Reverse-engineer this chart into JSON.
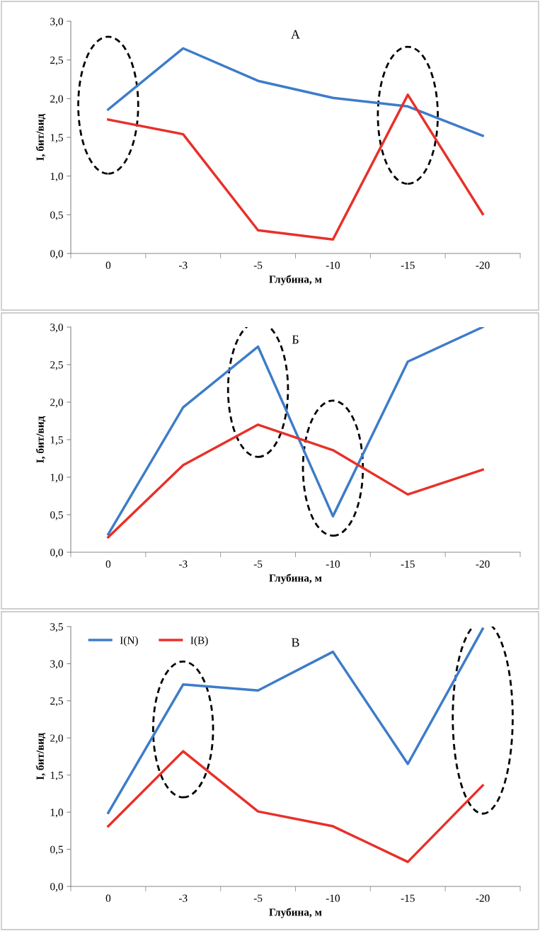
{
  "chart_data": [
    {
      "type": "line",
      "title": "А",
      "xlabel": "Глубина, м",
      "ylabel": "I, бит/вид",
      "categories": [
        "0",
        "-3",
        "-5",
        "-10",
        "-15",
        "-20"
      ],
      "ylim": [
        0,
        3
      ],
      "yticks": [
        {
          "value": 0,
          "label": "0,0"
        },
        {
          "value": 0.5,
          "label": "0,5"
        },
        {
          "value": 1,
          "label": "1,0"
        },
        {
          "value": 1.5,
          "label": "1,5"
        },
        {
          "value": 2,
          "label": "2,0"
        },
        {
          "value": 2.5,
          "label": "2,5"
        },
        {
          "value": 3,
          "label": "3,0"
        }
      ],
      "grid": false,
      "legend": false,
      "marker": "none",
      "line_style": "solid",
      "series": [
        {
          "color": "#3d7cc9",
          "values": [
            1.86,
            2.65,
            2.23,
            2.01,
            1.9,
            1.52
          ]
        },
        {
          "color": "#e8302a",
          "values": [
            1.73,
            1.54,
            0.3,
            0.18,
            2.05,
            0.51
          ]
        }
      ]
    },
    {
      "type": "line",
      "title": "Б",
      "xlabel": "Глубина, м",
      "ylabel": "I, бит/вид",
      "categories": [
        "0",
        "-3",
        "-5",
        "-10",
        "-15",
        "-20"
      ],
      "ylim": [
        0,
        3
      ],
      "yticks": [
        {
          "value": 0,
          "label": "0,0"
        },
        {
          "value": 0.5,
          "label": "0,5"
        },
        {
          "value": 1,
          "label": "1,0"
        },
        {
          "value": 1.5,
          "label": "1,5"
        },
        {
          "value": 2,
          "label": "2,0"
        },
        {
          "value": 2.5,
          "label": "2,5"
        },
        {
          "value": 3,
          "label": "3,0"
        }
      ],
      "grid": false,
      "legend": false,
      "marker": "none",
      "line_style": "solid",
      "series": [
        {
          "color": "#3d7cc9",
          "values": [
            0.24,
            1.93,
            2.74,
            0.48,
            2.54,
            3.0
          ]
        },
        {
          "color": "#e8302a",
          "values": [
            0.2,
            1.16,
            1.7,
            1.36,
            0.77,
            1.1
          ]
        }
      ]
    },
    {
      "type": "line",
      "title": "В",
      "xlabel": "Глубина, м",
      "ylabel": "I, бит/вид",
      "categories": [
        "0",
        "-3",
        "-5",
        "-10",
        "-15",
        "-20"
      ],
      "ylim": [
        0,
        3.5
      ],
      "yticks": [
        {
          "value": 0,
          "label": "0,0"
        },
        {
          "value": 0.5,
          "label": "0,5"
        },
        {
          "value": 1,
          "label": "1,0"
        },
        {
          "value": 1.5,
          "label": "1,5"
        },
        {
          "value": 2,
          "label": "2,0"
        },
        {
          "value": 2.5,
          "label": "2,5"
        },
        {
          "value": 3,
          "label": "3,0"
        },
        {
          "value": 3.5,
          "label": "3,5"
        }
      ],
      "grid": false,
      "legend": "top left",
      "marker": "none",
      "line_style": "solid",
      "series": [
        {
          "name": "I(N)",
          "color": "#3d7cc9",
          "values": [
            0.99,
            2.72,
            2.64,
            3.16,
            1.65,
            3.47
          ]
        },
        {
          "name": "I(B)",
          "color": "#e8302a",
          "values": [
            0.81,
            1.82,
            1.01,
            0.81,
            0.33,
            1.36
          ]
        }
      ]
    }
  ]
}
